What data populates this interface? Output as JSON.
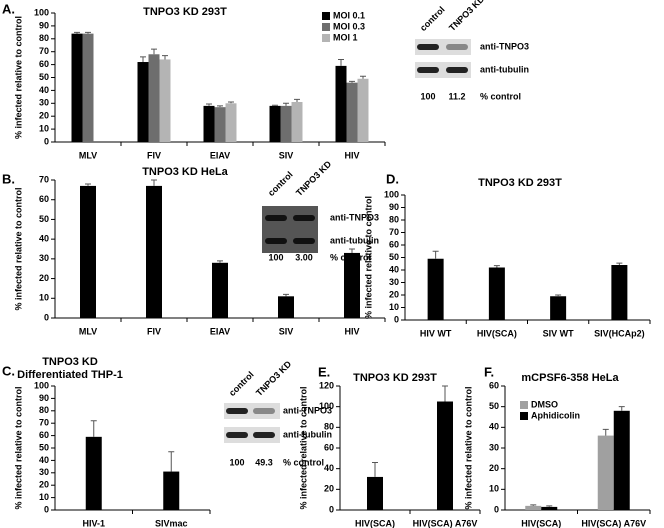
{
  "chart_data": [
    {
      "type": "bar",
      "panel": "A.",
      "title": "TNPO3 KD 293T",
      "ylabel": "% infected relative to control",
      "categories": [
        "MLV",
        "FIV",
        "EIAV",
        "SIV",
        "HIV"
      ],
      "series": [
        {
          "name": "MOI 0.1",
          "color": "#000000",
          "values": [
            84,
            62,
            28,
            28,
            59
          ],
          "errors": [
            1,
            4,
            1.5,
            0.5,
            5
          ]
        },
        {
          "name": "MOI 0.3",
          "color": "#6e6e6e",
          "values": [
            84,
            68,
            27,
            28,
            46
          ],
          "errors": [
            1,
            4,
            1,
            2,
            1
          ]
        },
        {
          "name": "MOI 1",
          "color": "#b4b4b4",
          "values": [
            null,
            64,
            30,
            31,
            49
          ],
          "errors": [
            null,
            3,
            1,
            2,
            2
          ]
        }
      ],
      "ylim": [
        0,
        100
      ],
      "yticks": [
        0,
        10,
        20,
        30,
        40,
        50,
        60,
        70,
        80,
        90,
        100
      ],
      "blot": {
        "lanes": [
          "control",
          "TNPO3 KD"
        ],
        "bands": [
          "anti-TNPO3",
          "anti-tubulin"
        ],
        "quant": [
          100,
          11.2
        ],
        "quant_label": "% control"
      }
    },
    {
      "type": "bar",
      "panel": "B.",
      "title": "TNPO3 KD HeLa",
      "ylabel": "% infected relative to control",
      "categories": [
        "MLV",
        "FIV",
        "EIAV",
        "SIV",
        "HIV"
      ],
      "series": [
        {
          "color": "#000000",
          "values": [
            67,
            67,
            28,
            11,
            33
          ],
          "errors": [
            1,
            3,
            1,
            1,
            2
          ]
        }
      ],
      "ylim": [
        0,
        70
      ],
      "yticks": [
        0,
        10,
        20,
        30,
        40,
        50,
        60,
        70
      ],
      "blot": {
        "lanes": [
          "control",
          "TNPO3 KD"
        ],
        "bands": [
          "anti-TNPO3",
          "anti-tubulin"
        ],
        "quant": [
          100,
          {
            "value": 3,
            "label": "3.00"
          }
        ],
        "quant_label": "% control"
      }
    },
    {
      "type": "bar",
      "panel": "D.",
      "title": "TNPO3 KD 293T",
      "ylabel": "% infected relative to control",
      "categories": [
        "HIV WT",
        "HIV(SCA)",
        "SIV WT",
        "SIV(HCAp2)"
      ],
      "series": [
        {
          "color": "#000000",
          "values": [
            49,
            42,
            19,
            44
          ],
          "errors": [
            6,
            1.5,
            1,
            1.5
          ]
        }
      ],
      "ylim": [
        0,
        100
      ],
      "yticks": [
        0,
        10,
        20,
        30,
        40,
        50,
        60,
        70,
        80,
        90,
        100
      ]
    },
    {
      "type": "bar",
      "panel": "C.",
      "title": [
        "TNPO3 KD",
        "Differentiated THP-1"
      ],
      "ylabel": "% infected relative to control",
      "categories": [
        "HIV-1",
        "SIVmac"
      ],
      "series": [
        {
          "color": "#000000",
          "values": [
            59,
            31
          ],
          "errors": [
            13,
            16
          ]
        }
      ],
      "ylim": [
        0,
        100
      ],
      "yticks": [
        0,
        10,
        20,
        30,
        40,
        50,
        60,
        70,
        80,
        90,
        100
      ],
      "blot": {
        "lanes": [
          "control",
          "TNPO3 KD"
        ],
        "bands": [
          "anti-TNPO3",
          "anti-tubulin"
        ],
        "quant": [
          100,
          49.3
        ],
        "quant_label": "% control"
      }
    },
    {
      "type": "bar",
      "panel": "E.",
      "title": "TNPO3 KD 293T",
      "ylabel": "% infected relative to control",
      "categories": [
        "HIV(SCA)",
        "HIV(SCA) A76V"
      ],
      "series": [
        {
          "color": "#000000",
          "values": [
            32,
            105
          ],
          "errors": [
            14,
            15
          ]
        }
      ],
      "ylim": [
        0,
        120
      ],
      "yticks": [
        0,
        20,
        40,
        60,
        80,
        100,
        120
      ]
    },
    {
      "type": "bar",
      "panel": "F.",
      "title": "mCPSF6-358 HeLa",
      "ylabel": "% infected relative to control",
      "categories": [
        "HIV(SCA)",
        "HIV(SCA) A76V"
      ],
      "series": [
        {
          "name": "DMSO",
          "color": "#a0a0a0",
          "values": [
            2,
            36
          ],
          "errors": [
            0.5,
            3
          ]
        },
        {
          "name": "Aphidicolin",
          "color": "#000000",
          "values": [
            1.5,
            48
          ],
          "errors": [
            0.5,
            2
          ]
        }
      ],
      "ylim": [
        0,
        60
      ],
      "yticks": [
        0,
        10,
        20,
        30,
        40,
        50,
        60
      ]
    }
  ]
}
